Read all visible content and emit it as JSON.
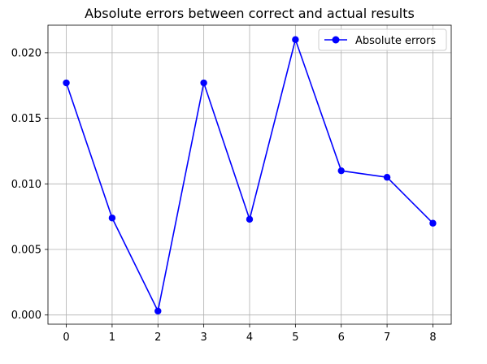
{
  "chart_data": {
    "type": "line",
    "title": "Absolute errors between correct and actual results",
    "xlabel": "",
    "ylabel": "",
    "x": [
      0,
      1,
      2,
      3,
      4,
      5,
      6,
      7,
      8
    ],
    "series": [
      {
        "name": "Absolute errors",
        "values": [
          0.0177,
          0.0074,
          0.0003,
          0.0177,
          0.0073,
          0.021,
          0.011,
          0.0105,
          0.007
        ],
        "color": "#0000ff",
        "marker": "circle"
      }
    ],
    "xlim": [
      -0.4,
      8.4
    ],
    "ylim": [
      -0.0007,
      0.0221
    ],
    "x_ticks": [
      0,
      1,
      2,
      3,
      4,
      5,
      6,
      7,
      8
    ],
    "y_ticks": [
      0.0,
      0.005,
      0.01,
      0.015,
      0.02
    ],
    "x_tick_labels": [
      "0",
      "1",
      "2",
      "3",
      "4",
      "5",
      "6",
      "7",
      "8"
    ],
    "y_tick_labels": [
      "0.000",
      "0.005",
      "0.010",
      "0.015",
      "0.020"
    ],
    "grid": true,
    "legend_position": "top-right",
    "colors": {
      "line": "#0000ff",
      "grid": "#b0b0b0",
      "axes": "#000000",
      "legend_border": "#cccccc"
    }
  }
}
